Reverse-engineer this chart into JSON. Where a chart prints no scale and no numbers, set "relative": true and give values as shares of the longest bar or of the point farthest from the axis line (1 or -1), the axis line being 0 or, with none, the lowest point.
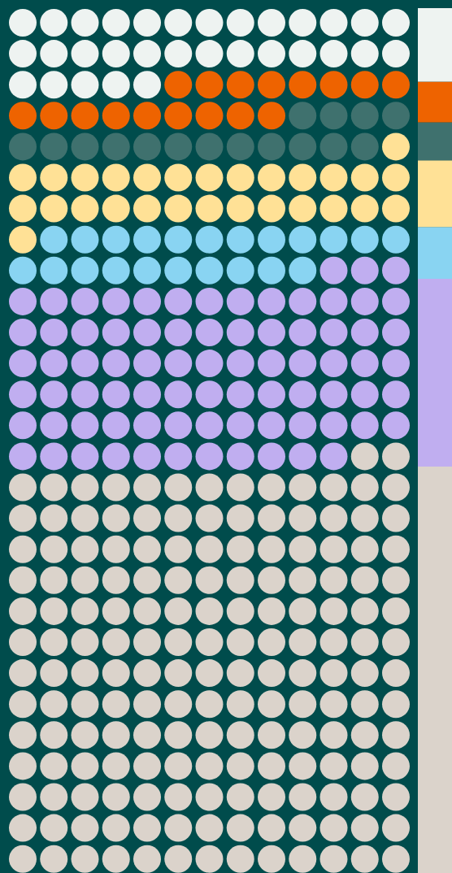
{
  "chart_data": {
    "type": "bar",
    "stacked": true,
    "relative": true,
    "categories": [
      null
    ],
    "series": [
      {
        "color": "#dbd3cb",
        "values": [
          0.47
        ]
      },
      {
        "color": "#c0aef0",
        "values": [
          0.217
        ]
      },
      {
        "color": "#89d4f2",
        "values": [
          0.06
        ]
      },
      {
        "color": "#ffe196",
        "values": [
          0.077
        ]
      },
      {
        "color": "#3f716e",
        "values": [
          0.044
        ]
      },
      {
        "color": "#ee6300",
        "values": [
          0.047
        ]
      },
      {
        "color": "#eef3f1",
        "values": [
          0.085
        ]
      }
    ]
  }
}
